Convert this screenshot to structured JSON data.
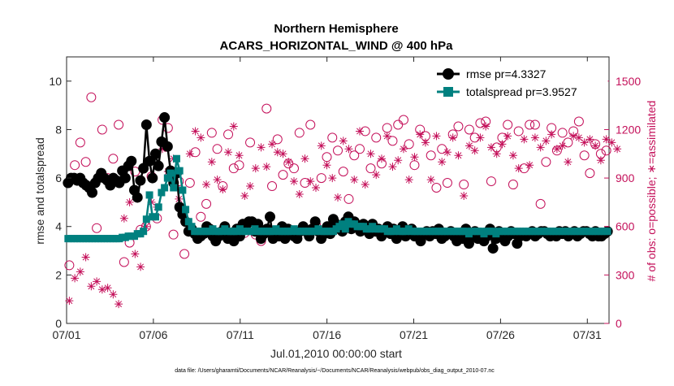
{
  "chart_data": {
    "type": "line",
    "title": "Northern Hemisphere",
    "subtitle": "ACARS_HORIZONTAL_WIND @ 400 hPa",
    "xlabel": "Jul.01,2010 00:00:00 start",
    "ylabel_left": "rmse and totalspread",
    "ylabel_right": "# of obs: o=possible; ∗=assimilated",
    "footnote": "data file: /Users/gharamti/Documents/NCAR/Reanalysis/~/Documents/NCAR/Reanalysis/webpub/obs_diag_output_2010-07.nc",
    "x_tick_labels": [
      "07/01",
      "07/06",
      "07/11",
      "07/16",
      "07/21",
      "07/26",
      "07/31"
    ],
    "x_tick_days": [
      1,
      6,
      11,
      16,
      21,
      26,
      31
    ],
    "xlim_days": [
      1,
      32.25
    ],
    "ylim_left": [
      0,
      11
    ],
    "y_ticks_left": [
      0,
      2,
      4,
      6,
      8,
      10
    ],
    "ylim_right": [
      0,
      1650
    ],
    "y_ticks_right": [
      0,
      300,
      600,
      900,
      1200,
      1500
    ],
    "grid": false,
    "legend_location": "top-right",
    "colors": {
      "rmse": "#000000",
      "totalspread": "#00807F",
      "obs": "#C4105A",
      "axis": "#262626"
    },
    "series": [
      {
        "name": "rmse pr=4.3327",
        "axis": "left",
        "marker": "circle",
        "values": [
          5.8,
          6.0,
          6.0,
          5.9,
          6.0,
          5.8,
          5.7,
          5.6,
          5.4,
          5.8,
          6.0,
          6.2,
          6.0,
          5.9,
          5.7,
          6.0,
          5.9,
          5.8,
          6.3,
          6.0,
          6.5,
          6.7,
          5.5,
          5.2,
          5.9,
          6.4,
          8.2,
          6.7,
          6.0,
          7.0,
          6.5,
          7.5,
          8.5,
          7.3,
          6.3,
          5.8,
          6.2,
          4.8,
          4.5,
          4.2,
          3.8,
          3.9,
          3.7,
          3.5,
          3.6,
          3.7,
          4.0,
          3.9,
          3.6,
          3.4,
          3.6,
          3.8,
          4.0,
          3.5,
          3.7,
          3.4,
          3.9,
          3.6,
          4.1,
          3.9,
          4.2,
          4.2,
          3.8,
          4.1,
          3.5,
          3.7,
          3.9,
          4.4,
          3.5,
          3.8,
          3.6,
          4.0,
          3.5,
          3.9,
          3.7,
          3.6,
          3.5,
          3.8,
          4.0,
          3.8,
          3.6,
          3.9,
          4.2,
          3.8,
          3.5,
          3.7,
          4.0,
          3.7,
          4.3,
          4.1,
          3.9,
          3.8,
          4.2,
          4.4,
          3.9,
          4.2,
          4.0,
          3.8,
          4.1,
          3.9,
          3.7,
          4.1,
          3.8,
          3.9,
          3.6,
          3.8,
          4.0,
          3.7,
          3.9,
          3.5,
          3.8,
          4.0,
          3.6,
          3.8,
          3.9,
          3.6,
          3.7,
          3.4,
          3.7,
          3.8,
          3.6,
          3.8,
          3.7,
          3.9,
          3.5,
          3.6,
          3.7,
          3.8,
          3.6,
          3.4,
          3.7,
          3.5,
          3.9,
          3.3,
          3.6,
          3.8,
          3.5,
          3.7,
          3.4,
          3.6,
          3.9,
          3.1,
          3.5,
          3.8,
          3.7,
          3.4,
          3.6,
          3.8,
          3.7,
          3.3,
          3.6,
          3.7,
          3.6,
          3.7,
          3.8,
          3.6,
          3.7,
          3.8,
          3.8,
          3.7,
          3.6,
          3.7,
          3.6,
          3.8,
          3.7,
          3.8,
          3.6,
          3.7,
          3.8,
          3.6,
          3.7,
          3.8,
          3.8,
          3.7,
          3.6,
          3.8,
          3.6,
          3.6,
          3.7,
          3.8
        ]
      },
      {
        "name": "totalspread pr=3.9527",
        "axis": "left",
        "marker": "square",
        "values": [
          3.5,
          3.5,
          3.5,
          3.5,
          3.5,
          3.5,
          3.5,
          3.5,
          3.5,
          3.5,
          3.5,
          3.5,
          3.5,
          3.5,
          3.5,
          3.5,
          3.5,
          3.5,
          3.55,
          3.55,
          3.6,
          3.6,
          3.6,
          3.7,
          3.7,
          3.8,
          4.3,
          5.3,
          4.4,
          4.4,
          4.8,
          5.4,
          5.6,
          6.0,
          6.2,
          5.6,
          6.8,
          6.3,
          5.5,
          4.7,
          4.2,
          4.0,
          3.8,
          3.8,
          3.8,
          3.8,
          3.8,
          3.8,
          3.9,
          3.8,
          3.8,
          3.8,
          3.9,
          3.8,
          3.8,
          3.8,
          3.8,
          3.9,
          3.8,
          3.8,
          3.8,
          3.8,
          3.9,
          3.8,
          3.8,
          3.8,
          3.8,
          3.8,
          3.8,
          3.9,
          3.8,
          3.8,
          3.8,
          3.8,
          3.8,
          3.9,
          3.8,
          3.8,
          3.8,
          3.8,
          3.8,
          3.8,
          3.8,
          3.9,
          3.8,
          3.8,
          3.8,
          3.8,
          3.8,
          3.9,
          4.0,
          4.1,
          3.9,
          4.2,
          4.1,
          4.1,
          4.0,
          4.0,
          4.0,
          3.9,
          3.9,
          4.0,
          3.9,
          3.9,
          3.9,
          3.9,
          3.8,
          3.8,
          3.8,
          3.9,
          3.8,
          3.8,
          3.8,
          3.9,
          3.8,
          3.8,
          3.8,
          3.8,
          3.8,
          3.8,
          3.8,
          3.8,
          3.8,
          3.8,
          3.8,
          3.8,
          3.8,
          3.8,
          3.8,
          3.8,
          3.8,
          3.8,
          3.8,
          3.7,
          3.8,
          3.8,
          3.8,
          3.8,
          3.7,
          3.8,
          3.8,
          3.8,
          3.7,
          3.8,
          3.8,
          3.8,
          3.8,
          3.8,
          3.8,
          3.8,
          3.8,
          3.8,
          3.8,
          3.8,
          3.8,
          3.8,
          3.8,
          3.8,
          3.8,
          3.8,
          3.8,
          3.8,
          3.8,
          3.8,
          3.8,
          3.8,
          3.8,
          3.8,
          3.8,
          3.8,
          3.8,
          3.8,
          3.8,
          3.8,
          3.8,
          3.8,
          3.8,
          3.8,
          3.8,
          3.8
        ]
      },
      {
        "name": "possible",
        "axis": "right",
        "marker": "open-circle",
        "values": [
          360,
          980,
          1120,
          1000,
          1400,
          590,
          1200,
          900,
          1020,
          1230,
          380,
          500,
          940,
          580,
          600,
          910,
          650,
          1260,
          1210,
          550,
          880,
          430,
          870,
          1060,
          660,
          740,
          1180,
          1080,
          850,
          1170,
          960,
          980,
          560,
          1120,
          550,
          510,
          1330,
          850,
          1140,
          920,
          990,
          960,
          1180,
          870,
          1230,
          610,
          900,
          1030,
          1150,
          1070,
          940,
          770,
          1040,
          1080,
          1190,
          960,
          1150,
          990,
          1210,
          1130,
          1230,
          1260,
          1110,
          980,
          1200,
          1160,
          1040,
          840,
          1080,
          870,
          1170,
          1220,
          860,
          1200,
          1150,
          1240,
          1250,
          880,
          1090,
          1150,
          1230,
          860,
          1190,
          960,
          1230,
          1230,
          740,
          1000,
          1210,
          1070,
          1180,
          1120,
          1190,
          1250,
          1040,
          930,
          1110,
          1050,
          1070
        ]
      },
      {
        "name": "assimilated",
        "axis": "right",
        "marker": "asterisk",
        "values": [
          140,
          280,
          320,
          410,
          230,
          260,
          210,
          220,
          180,
          120,
          650,
          750,
          430,
          350,
          600,
          750,
          720,
          1080,
          940,
          1020,
          770,
          630,
          1050,
          1190,
          1150,
          860,
          1000,
          890,
          830,
          1060,
          1220,
          1040,
          790,
          850,
          960,
          1090,
          970,
          1110,
          1060,
          1050,
          1000,
          880,
          800,
          1020,
          880,
          840,
          1100,
          980,
          900,
          780,
          1130,
          1080,
          890,
          1190,
          860,
          1050,
          920,
          1020,
          1160,
          970,
          1010,
          1080,
          890,
          1030,
          1170,
          1120,
          890,
          1160,
          1000,
          1060,
          1150,
          1040,
          790,
          1100,
          1070,
          1150,
          1220,
          1090,
          1050,
          1110,
          1160,
          1040,
          960,
          1140,
          980,
          1150,
          1090,
          1130,
          1170,
          1080,
          1100,
          1000,
          1160,
          1150,
          1120,
          1140,
          1100,
          1010,
          1140,
          1120,
          1080
        ]
      }
    ]
  }
}
